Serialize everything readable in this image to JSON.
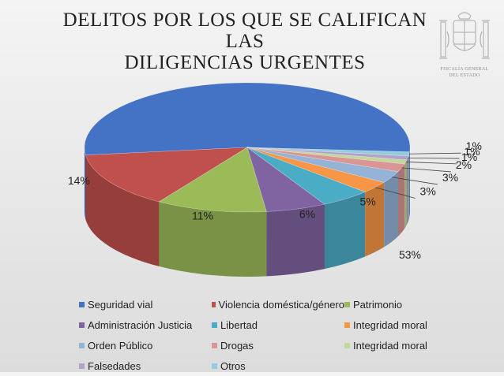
{
  "chart_data": {
    "type": "pie",
    "title_line1": "DELITOS POR LOS QUE SE CALIFICAN LAS",
    "title_line2": "DILIGENCIAS URGENTES",
    "style": "3d",
    "legend_position": "bottom",
    "categories": [
      "Seguridad vial",
      "Violencia doméstica/género",
      "Patrimonio",
      "Administración Justicia",
      "Libertad",
      "Integridad moral",
      "Orden Público",
      "Drogas",
      "Integridad moral",
      "Falsedades",
      "Otros"
    ],
    "values": [
      53,
      14,
      11,
      6,
      5,
      3,
      3,
      2,
      1,
      1,
      1
    ],
    "labels": [
      "53%",
      "14%",
      "11%",
      "6%",
      "5%",
      "3%",
      "3%",
      "2%",
      "1%",
      "1%",
      "1%"
    ],
    "colors": [
      "#4472c4",
      "#c0504d",
      "#9bbb59",
      "#8064a2",
      "#4bacc6",
      "#f79646",
      "#95b3d7",
      "#d99694",
      "#c3d69b",
      "#b3a2c7",
      "#93cddd"
    ]
  },
  "emblem": {
    "caption_line1": "FISCALÍA GENERAL",
    "caption_line2": "DEL ESTADO"
  }
}
